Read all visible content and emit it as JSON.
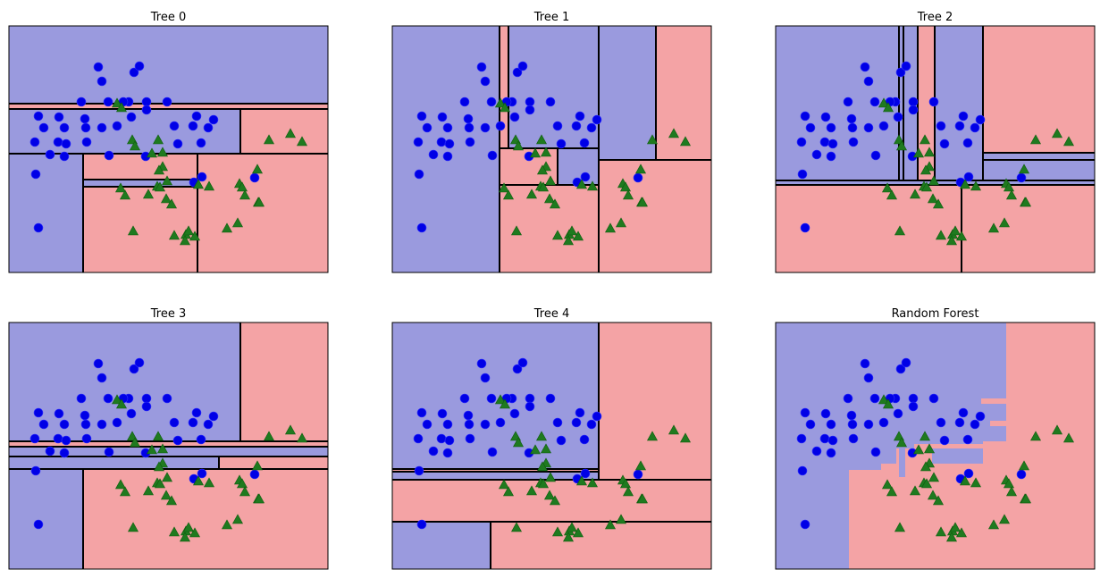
{
  "colors": {
    "class0_region": "#9a9ade",
    "class1_region": "#f4a3a5",
    "class0_marker": "#0000e6",
    "class1_marker": "#1f7a1f",
    "split_line": "#000000"
  },
  "icons": {
    "class0_marker": "circle",
    "class1_marker": "triangle-up"
  },
  "chart_data": [
    {
      "type": "scatter",
      "title": "Tree 0",
      "xlim": [
        0,
        357
      ],
      "ylim": [
        0,
        276
      ],
      "grid": false,
      "regions": [
        {
          "cls": 0,
          "x0": 0,
          "x1": 357,
          "y0": 189,
          "y1": 276
        },
        {
          "cls": 1,
          "x0": 0,
          "x1": 357,
          "y0": 183,
          "y1": 189
        },
        {
          "cls": 0,
          "x0": 0,
          "x1": 259,
          "y0": 133,
          "y1": 183
        },
        {
          "cls": 1,
          "x0": 259,
          "x1": 357,
          "y0": 133,
          "y1": 183
        },
        {
          "cls": 0,
          "x0": 0,
          "x1": 83,
          "y0": 0,
          "y1": 133
        },
        {
          "cls": 1,
          "x0": 83,
          "x1": 357,
          "y0": 0,
          "y1": 133
        },
        {
          "cls": 0,
          "x0": 83,
          "x1": 211,
          "y0": 96,
          "y1": 104
        }
      ],
      "splits": [
        {
          "x0": 0,
          "x1": 357,
          "y0": 189,
          "y1": 189
        },
        {
          "x0": 0,
          "x1": 357,
          "y0": 183,
          "y1": 183
        },
        {
          "x0": 259,
          "x1": 259,
          "y0": 133,
          "y1": 183
        },
        {
          "x0": 0,
          "x1": 357,
          "y0": 133,
          "y1": 133
        },
        {
          "x0": 83,
          "x1": 83,
          "y0": 0,
          "y1": 133
        },
        {
          "x0": 211,
          "x1": 211,
          "y0": 0,
          "y1": 133
        },
        {
          "x0": 83,
          "x1": 211,
          "y0": 104,
          "y1": 104
        },
        {
          "x0": 83,
          "x1": 211,
          "y0": 96,
          "y1": 96
        }
      ]
    },
    {
      "type": "scatter",
      "title": "Tree 1",
      "xlim": [
        0,
        357
      ],
      "ylim": [
        0,
        276
      ],
      "grid": false,
      "regions": [
        {
          "cls": 0,
          "x0": 0,
          "x1": 120,
          "y0": 0,
          "y1": 276
        },
        {
          "cls": 1,
          "x0": 120,
          "x1": 130,
          "y0": 139,
          "y1": 276
        },
        {
          "cls": 0,
          "x0": 130,
          "x1": 231,
          "y0": 139,
          "y1": 276
        },
        {
          "cls": 0,
          "x0": 231,
          "x1": 295,
          "y0": 126,
          "y1": 276
        },
        {
          "cls": 1,
          "x0": 295,
          "x1": 357,
          "y0": 126,
          "y1": 276
        },
        {
          "cls": 1,
          "x0": 120,
          "x1": 357,
          "y0": 0,
          "y1": 126
        },
        {
          "cls": 1,
          "x0": 120,
          "x1": 231,
          "y0": 98,
          "y1": 139
        },
        {
          "cls": 0,
          "x0": 185,
          "x1": 231,
          "y0": 98,
          "y1": 139
        }
      ],
      "splits": [
        {
          "x0": 120,
          "x1": 120,
          "y0": 0,
          "y1": 276
        },
        {
          "x0": 130,
          "x1": 130,
          "y0": 139,
          "y1": 276
        },
        {
          "x0": 231,
          "x1": 231,
          "y0": 0,
          "y1": 276
        },
        {
          "x0": 295,
          "x1": 295,
          "y0": 126,
          "y1": 276
        },
        {
          "x0": 231,
          "x1": 357,
          "y0": 126,
          "y1": 126
        },
        {
          "x0": 120,
          "x1": 231,
          "y0": 139,
          "y1": 139
        },
        {
          "x0": 120,
          "x1": 231,
          "y0": 98,
          "y1": 98
        },
        {
          "x0": 185,
          "x1": 185,
          "y0": 98,
          "y1": 139
        }
      ]
    },
    {
      "type": "scatter",
      "title": "Tree 2",
      "xlim": [
        0,
        357
      ],
      "ylim": [
        0,
        276
      ],
      "grid": false,
      "regions": [
        {
          "cls": 0,
          "x0": 0,
          "x1": 232,
          "y0": 103,
          "y1": 276
        },
        {
          "cls": 1,
          "x0": 159,
          "x1": 178,
          "y0": 103,
          "y1": 276
        },
        {
          "cls": 1,
          "x0": 232,
          "x1": 357,
          "y0": 134,
          "y1": 276
        },
        {
          "cls": 1,
          "x0": 0,
          "x1": 357,
          "y0": 0,
          "y1": 98
        },
        {
          "cls": 0,
          "x0": 232,
          "x1": 357,
          "y0": 126,
          "y1": 134
        }
      ],
      "splits": [
        {
          "x0": 138,
          "x1": 138,
          "y0": 103,
          "y1": 276
        },
        {
          "x0": 143,
          "x1": 143,
          "y0": 103,
          "y1": 276
        },
        {
          "x0": 159,
          "x1": 159,
          "y0": 103,
          "y1": 276
        },
        {
          "x0": 178,
          "x1": 178,
          "y0": 103,
          "y1": 276
        },
        {
          "x0": 232,
          "x1": 232,
          "y0": 103,
          "y1": 276
        },
        {
          "x0": 232,
          "x1": 357,
          "y0": 134,
          "y1": 134
        },
        {
          "x0": 232,
          "x1": 357,
          "y0": 126,
          "y1": 126
        },
        {
          "x0": 0,
          "x1": 357,
          "y0": 103,
          "y1": 103
        },
        {
          "x0": 0,
          "x1": 357,
          "y0": 98,
          "y1": 98
        },
        {
          "x0": 208,
          "x1": 208,
          "y0": 0,
          "y1": 98
        }
      ]
    },
    {
      "type": "scatter",
      "title": "Tree 3",
      "xlim": [
        0,
        357
      ],
      "ylim": [
        0,
        276
      ],
      "grid": false,
      "regions": [
        {
          "cls": 0,
          "x0": 0,
          "x1": 259,
          "y0": 143,
          "y1": 276
        },
        {
          "cls": 1,
          "x0": 259,
          "x1": 357,
          "y0": 143,
          "y1": 276
        },
        {
          "cls": 1,
          "x0": 0,
          "x1": 357,
          "y0": 137,
          "y1": 143
        },
        {
          "cls": 0,
          "x0": 0,
          "x1": 357,
          "y0": 126,
          "y1": 137
        },
        {
          "cls": 0,
          "x0": 0,
          "x1": 235,
          "y0": 112,
          "y1": 126
        },
        {
          "cls": 1,
          "x0": 235,
          "x1": 357,
          "y0": 112,
          "y1": 126
        },
        {
          "cls": 0,
          "x0": 0,
          "x1": 83,
          "y0": 0,
          "y1": 112
        },
        {
          "cls": 1,
          "x0": 83,
          "x1": 357,
          "y0": 0,
          "y1": 112
        }
      ],
      "splits": [
        {
          "x0": 259,
          "x1": 259,
          "y0": 143,
          "y1": 276
        },
        {
          "x0": 0,
          "x1": 357,
          "y0": 143,
          "y1": 143
        },
        {
          "x0": 0,
          "x1": 357,
          "y0": 137,
          "y1": 137
        },
        {
          "x0": 0,
          "x1": 357,
          "y0": 126,
          "y1": 126
        },
        {
          "x0": 235,
          "x1": 235,
          "y0": 112,
          "y1": 126
        },
        {
          "x0": 0,
          "x1": 357,
          "y0": 112,
          "y1": 112
        },
        {
          "x0": 83,
          "x1": 83,
          "y0": 0,
          "y1": 112
        }
      ]
    },
    {
      "type": "scatter",
      "title": "Tree 4",
      "xlim": [
        0,
        357
      ],
      "ylim": [
        0,
        276
      ],
      "grid": false,
      "regions": [
        {
          "cls": 0,
          "x0": 0,
          "x1": 231,
          "y0": 100,
          "y1": 276
        },
        {
          "cls": 1,
          "x0": 231,
          "x1": 357,
          "y0": 100,
          "y1": 276
        },
        {
          "cls": 1,
          "x0": 0,
          "x1": 357,
          "y0": 53,
          "y1": 100
        },
        {
          "cls": 0,
          "x0": 0,
          "x1": 110,
          "y0": 0,
          "y1": 53
        },
        {
          "cls": 1,
          "x0": 110,
          "x1": 357,
          "y0": 0,
          "y1": 53
        },
        {
          "cls": 1,
          "x0": 0,
          "x1": 231,
          "y0": 109,
          "y1": 112
        }
      ],
      "splits": [
        {
          "x0": 231,
          "x1": 231,
          "y0": 100,
          "y1": 276
        },
        {
          "x0": 0,
          "x1": 231,
          "y0": 112,
          "y1": 112
        },
        {
          "x0": 0,
          "x1": 231,
          "y0": 109,
          "y1": 109
        },
        {
          "x0": 0,
          "x1": 357,
          "y0": 100,
          "y1": 100
        },
        {
          "x0": 0,
          "x1": 357,
          "y0": 53,
          "y1": 53
        },
        {
          "x0": 110,
          "x1": 110,
          "y0": 0,
          "y1": 53
        }
      ]
    },
    {
      "type": "scatter",
      "title": "Random Forest",
      "xlim": [
        0,
        357
      ],
      "ylim": [
        0,
        276
      ],
      "grid": false,
      "regions": [
        {
          "cls": 1,
          "x0": 258,
          "x1": 357,
          "y0": 143,
          "y1": 276
        },
        {
          "cls": 1,
          "x0": 82,
          "x1": 357,
          "y0": 0,
          "y1": 103
        },
        {
          "cls": 1,
          "x0": 232,
          "x1": 357,
          "y0": 103,
          "y1": 143
        },
        {
          "cls": 1,
          "x0": 230,
          "x1": 258,
          "y0": 185,
          "y1": 191
        },
        {
          "cls": 1,
          "x0": 240,
          "x1": 258,
          "y0": 160,
          "y1": 166
        },
        {
          "cls": 1,
          "x0": 265,
          "x1": 357,
          "y0": 118,
          "y1": 128
        },
        {
          "cls": 1,
          "x0": 82,
          "x1": 130,
          "y0": 103,
          "y1": 111
        },
        {
          "cls": 1,
          "x0": 118,
          "x1": 232,
          "y0": 103,
          "y1": 118
        },
        {
          "cls": 1,
          "x0": 135,
          "x1": 175,
          "y0": 118,
          "y1": 135
        },
        {
          "cls": 1,
          "x0": 155,
          "x1": 232,
          "y0": 135,
          "y1": 140
        },
        {
          "cls": 0,
          "x0": 138,
          "x1": 145,
          "y0": 103,
          "y1": 135
        },
        {
          "cls": 0,
          "x0": 175,
          "x1": 232,
          "y0": 118,
          "y1": 126
        }
      ],
      "splits": []
    }
  ],
  "points": {
    "class0": [
      [
        100,
        230
      ],
      [
        140,
        224
      ],
      [
        146,
        231
      ],
      [
        104,
        214
      ],
      [
        134,
        191
      ],
      [
        81,
        191
      ],
      [
        111,
        191
      ],
      [
        128,
        191
      ],
      [
        154,
        191
      ],
      [
        177,
        191
      ],
      [
        154,
        182
      ],
      [
        33,
        175
      ],
      [
        39,
        162
      ],
      [
        62,
        162
      ],
      [
        86,
        162
      ],
      [
        104,
        162
      ],
      [
        121,
        164
      ],
      [
        185,
        164
      ],
      [
        206,
        164
      ],
      [
        223,
        162
      ],
      [
        229,
        171
      ],
      [
        56,
        174
      ],
      [
        85,
        172
      ],
      [
        137,
        174
      ],
      [
        29,
        146
      ],
      [
        55,
        146
      ],
      [
        87,
        146
      ],
      [
        215,
        145
      ],
      [
        189,
        144
      ],
      [
        30,
        110
      ],
      [
        46,
        132
      ],
      [
        64,
        144
      ],
      [
        62,
        130
      ],
      [
        112,
        131
      ],
      [
        153,
        130
      ],
      [
        210,
        175
      ],
      [
        275,
        106
      ],
      [
        216,
        107
      ],
      [
        207,
        101
      ],
      [
        33,
        50
      ]
    ],
    "class1": [
      [
        138,
        148
      ],
      [
        167,
        148
      ],
      [
        121,
        189
      ],
      [
        141,
        141
      ],
      [
        126,
        184
      ],
      [
        172,
        134
      ],
      [
        160,
        133
      ],
      [
        172,
        118
      ],
      [
        168,
        114
      ],
      [
        177,
        102
      ],
      [
        166,
        96
      ],
      [
        125,
        94
      ],
      [
        130,
        86
      ],
      [
        169,
        95
      ],
      [
        156,
        87
      ],
      [
        176,
        82
      ],
      [
        182,
        76
      ],
      [
        212,
        98
      ],
      [
        224,
        96
      ],
      [
        258,
        99
      ],
      [
        261,
        95
      ],
      [
        264,
        86
      ],
      [
        279,
        78
      ],
      [
        280,
        78
      ],
      [
        256,
        55
      ],
      [
        198,
        42
      ],
      [
        208,
        40
      ],
      [
        185,
        41
      ],
      [
        201,
        46
      ],
      [
        244,
        49
      ],
      [
        315,
        155
      ],
      [
        291,
        148
      ],
      [
        328,
        146
      ],
      [
        278,
        115
      ],
      [
        139,
        46
      ],
      [
        197,
        35
      ]
    ]
  }
}
